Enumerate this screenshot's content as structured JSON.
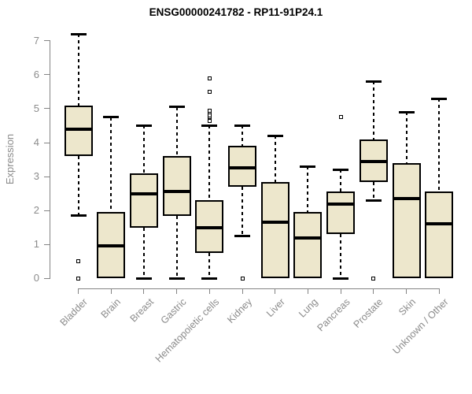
{
  "chart_data": {
    "type": "box",
    "title": "ENSG00000241782 - RP11-91P24.1",
    "xlabel": "",
    "ylabel": "Expression",
    "ylim": [
      0,
      7
    ],
    "yticks": [
      0,
      1,
      2,
      3,
      4,
      5,
      6,
      7
    ],
    "grid": false,
    "legend": "none",
    "categories": [
      "Bladder",
      "Brain",
      "Breast",
      "Gastric",
      "Hematopoietic cells",
      "Kidney",
      "Liver",
      "Lung",
      "Pancreas",
      "Prostate",
      "Skin",
      "Unknown / Other"
    ],
    "series": [
      {
        "name": "Bladder",
        "whisker_low": 1.85,
        "q1": 3.6,
        "median": 4.4,
        "q3": 5.1,
        "whisker_high": 7.2,
        "outliers": [
          0.5,
          0
        ]
      },
      {
        "name": "Brain",
        "whisker_low": 0,
        "q1": 0,
        "median": 0.95,
        "q3": 1.95,
        "whisker_high": 4.75,
        "outliers": []
      },
      {
        "name": "Breast",
        "whisker_low": 0,
        "q1": 1.5,
        "median": 2.5,
        "q3": 3.1,
        "whisker_high": 4.5,
        "outliers": []
      },
      {
        "name": "Gastric",
        "whisker_low": 0,
        "q1": 1.85,
        "median": 2.55,
        "q3": 3.6,
        "whisker_high": 5.05,
        "outliers": []
      },
      {
        "name": "Hematopoietic cells",
        "whisker_low": 0,
        "q1": 0.75,
        "median": 1.5,
        "q3": 2.3,
        "whisker_high": 4.5,
        "outliers": [
          4.65,
          4.75,
          4.8,
          4.9,
          4.95,
          5.5,
          5.9
        ]
      },
      {
        "name": "Kidney",
        "whisker_low": 1.25,
        "q1": 2.7,
        "median": 3.25,
        "q3": 3.9,
        "whisker_high": 4.5,
        "outliers": [
          0
        ]
      },
      {
        "name": "Liver",
        "whisker_low": 0,
        "q1": 0,
        "median": 1.65,
        "q3": 2.85,
        "whisker_high": 4.2,
        "outliers": []
      },
      {
        "name": "Lung",
        "whisker_low": 0,
        "q1": 0,
        "median": 1.2,
        "q3": 1.95,
        "whisker_high": 3.3,
        "outliers": []
      },
      {
        "name": "Pancreas",
        "whisker_low": 0,
        "q1": 1.3,
        "median": 2.2,
        "q3": 2.55,
        "whisker_high": 3.2,
        "outliers": [
          4.75
        ]
      },
      {
        "name": "Prostate",
        "whisker_low": 2.3,
        "q1": 2.85,
        "median": 3.45,
        "q3": 4.1,
        "whisker_high": 5.8,
        "outliers": [
          0
        ]
      },
      {
        "name": "Skin",
        "whisker_low": 0,
        "q1": 0,
        "median": 2.35,
        "q3": 3.4,
        "whisker_high": 4.9,
        "outliers": []
      },
      {
        "name": "Unknown / Other",
        "whisker_low": 0,
        "q1": 0,
        "median": 1.6,
        "q3": 2.55,
        "whisker_high": 5.3,
        "outliers": []
      }
    ],
    "style": {
      "box_fill": "#EDE7CC",
      "box_border": "#000000",
      "median_color": "#000000",
      "whisker_color": "#000000",
      "axis_color": "#848484",
      "label_color": "#8B8B8B",
      "title_color": "#000000",
      "background": "#FFFFFF"
    }
  }
}
